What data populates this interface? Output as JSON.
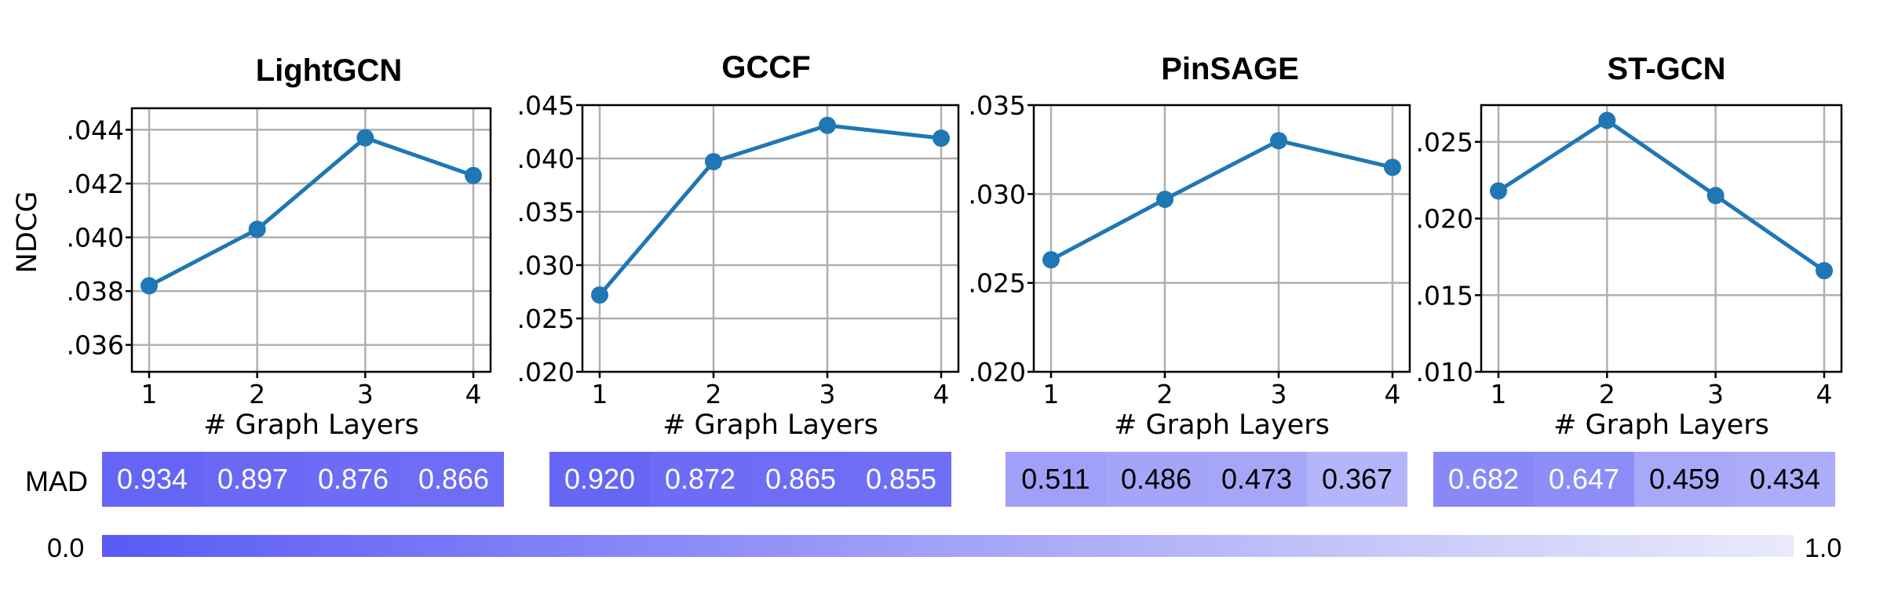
{
  "mad_label": "MAD",
  "colorbar": {
    "min_label": "0.0",
    "max_label": "1.0",
    "min": 0.0,
    "max": 1.0,
    "low_color": "#eaeafb",
    "high_color": "#5a5af5"
  },
  "colors": {
    "series": "#1f77b4",
    "grid": "#b0b0b0"
  },
  "chart_data": [
    {
      "type": "line",
      "title": "LightGCN",
      "xlabel": "# Graph Layers",
      "ylabel": "NDCG",
      "x": [
        1,
        2,
        3,
        4
      ],
      "x_tick_labels": [
        "1",
        "2",
        "3",
        "4"
      ],
      "series": [
        {
          "values": [
            0.0382,
            0.0403,
            0.0437,
            0.0423
          ]
        }
      ],
      "ylim": [
        0.035,
        0.0448
      ],
      "yticks": [
        0.036,
        0.038,
        0.04,
        0.042,
        0.044
      ],
      "y_tick_labels": [
        ".036",
        ".038",
        ".040",
        ".042",
        ".044"
      ],
      "grid": true,
      "mad": {
        "values": [
          0.934,
          0.897,
          0.876,
          0.866
        ],
        "labels": [
          "0.934",
          "0.897",
          "0.876",
          "0.866"
        ]
      }
    },
    {
      "type": "line",
      "title": "GCCF",
      "xlabel": "# Graph Layers",
      "ylabel": "",
      "x": [
        1,
        2,
        3,
        4
      ],
      "x_tick_labels": [
        "1",
        "2",
        "3",
        "4"
      ],
      "series": [
        {
          "values": [
            0.0272,
            0.0397,
            0.0431,
            0.0419
          ]
        }
      ],
      "ylim": [
        0.02,
        0.045
      ],
      "yticks": [
        0.02,
        0.025,
        0.03,
        0.035,
        0.04,
        0.045
      ],
      "y_tick_labels": [
        ".020",
        ".025",
        ".030",
        ".035",
        ".040",
        ".045"
      ],
      "grid": true,
      "mad": {
        "values": [
          0.92,
          0.872,
          0.865,
          0.855
        ],
        "labels": [
          "0.920",
          "0.872",
          "0.865",
          "0.855"
        ]
      }
    },
    {
      "type": "line",
      "title": "PinSAGE",
      "xlabel": "# Graph Layers",
      "ylabel": "",
      "x": [
        1,
        2,
        3,
        4
      ],
      "x_tick_labels": [
        "1",
        "2",
        "3",
        "4"
      ],
      "series": [
        {
          "values": [
            0.0263,
            0.0297,
            0.033,
            0.0315
          ]
        }
      ],
      "ylim": [
        0.02,
        0.035
      ],
      "yticks": [
        0.02,
        0.025,
        0.03,
        0.035
      ],
      "y_tick_labels": [
        ".020",
        ".025",
        ".030",
        ".035"
      ],
      "grid": true,
      "mad": {
        "values": [
          0.511,
          0.486,
          0.473,
          0.367
        ],
        "labels": [
          "0.511",
          "0.486",
          "0.473",
          "0.367"
        ]
      }
    },
    {
      "type": "line",
      "title": "ST-GCN",
      "xlabel": "# Graph Layers",
      "ylabel": "",
      "x": [
        1,
        2,
        3,
        4
      ],
      "x_tick_labels": [
        "1",
        "2",
        "3",
        "4"
      ],
      "series": [
        {
          "values": [
            0.0218,
            0.0264,
            0.0215,
            0.0166
          ]
        }
      ],
      "ylim": [
        0.01,
        0.0274
      ],
      "yticks": [
        0.01,
        0.015,
        0.02,
        0.025
      ],
      "y_tick_labels": [
        ".010",
        ".015",
        ".020",
        ".025"
      ],
      "grid": true,
      "mad": {
        "values": [
          0.682,
          0.647,
          0.459,
          0.434
        ],
        "labels": [
          "0.682",
          "0.647",
          "0.459",
          "0.434"
        ]
      }
    }
  ]
}
